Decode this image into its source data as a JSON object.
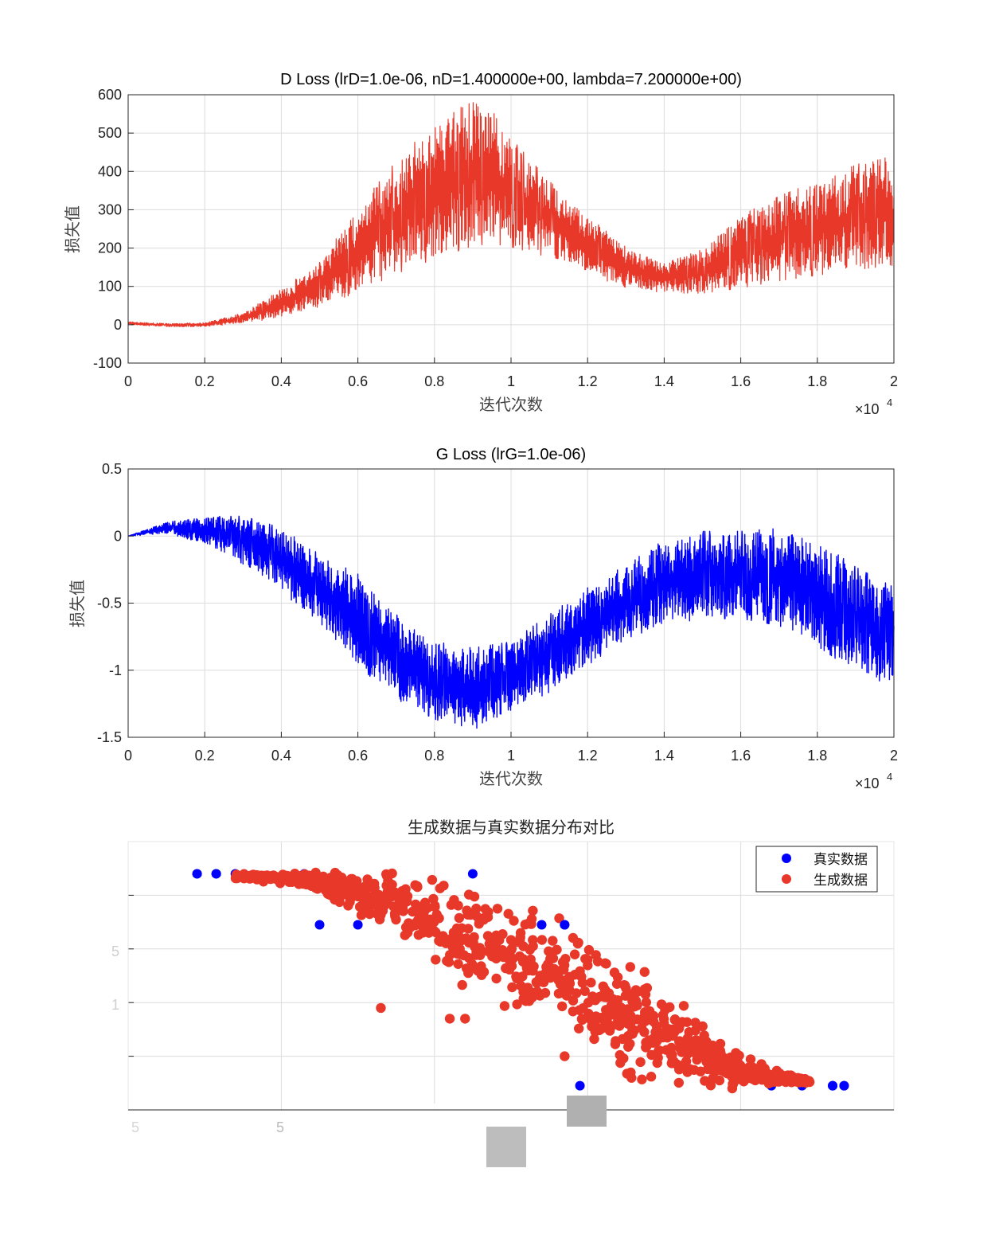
{
  "chart_data": [
    {
      "type": "line",
      "title": "D Loss (lrD=1.0e-06, nD=1.400000e+00, lambda=7.200000e+00)",
      "xlabel": "迭代次数",
      "ylabel": "损失值",
      "xlim": [
        0,
        20000
      ],
      "ylim": [
        -100,
        600
      ],
      "xticks": [
        0,
        0.2,
        0.4,
        0.6,
        0.8,
        1,
        1.2,
        1.4,
        1.6,
        1.8,
        2
      ],
      "xtick_labels": [
        "0",
        "0.2",
        "0.4",
        "0.6",
        "0.8",
        "1",
        "1.2",
        "1.4",
        "1.6",
        "1.8",
        "2"
      ],
      "x_exponent_base": "×10",
      "x_exponent_power": "4",
      "yticks": [
        -100,
        0,
        100,
        200,
        300,
        400,
        500,
        600
      ],
      "ytick_labels": [
        "-100",
        "0",
        "100",
        "200",
        "300",
        "400",
        "500",
        "600"
      ],
      "color": "#e8382a",
      "grid": true,
      "series": [
        {
          "name": "D Loss",
          "envelope_x": [
            0,
            1000,
            2000,
            3000,
            4000,
            5000,
            6000,
            7000,
            8000,
            9000,
            9500,
            10000,
            11000,
            12000,
            13000,
            14000,
            15000,
            16000,
            17000,
            18000,
            19000,
            19800,
            20000
          ],
          "envelope_low": [
            0,
            -5,
            -5,
            5,
            20,
            50,
            90,
            140,
            180,
            215,
            220,
            210,
            180,
            135,
            100,
            85,
            85,
            100,
            120,
            135,
            150,
            160,
            150
          ],
          "envelope_high": [
            8,
            3,
            5,
            30,
            90,
            160,
            300,
            420,
            520,
            590,
            560,
            480,
            370,
            280,
            200,
            160,
            200,
            280,
            330,
            370,
            410,
            440,
            360
          ]
        }
      ]
    },
    {
      "type": "line",
      "title": "G Loss (lrG=1.0e-06)",
      "xlabel": "迭代次数",
      "ylabel": "损失值",
      "xlim": [
        0,
        20000
      ],
      "ylim": [
        -1.5,
        0.5
      ],
      "xticks": [
        0,
        0.2,
        0.4,
        0.6,
        0.8,
        1,
        1.2,
        1.4,
        1.6,
        1.8,
        2
      ],
      "xtick_labels": [
        "0",
        "0.2",
        "0.4",
        "0.6",
        "0.8",
        "1",
        "1.2",
        "1.4",
        "1.6",
        "1.8",
        "2"
      ],
      "x_exponent_base": "×10",
      "x_exponent_power": "4",
      "yticks": [
        -1.5,
        -1,
        -0.5,
        0,
        0.5
      ],
      "ytick_labels": [
        "-1.5",
        "-1",
        "-0.5",
        "0",
        "0.5"
      ],
      "color": "#0000ff",
      "grid": true,
      "series": [
        {
          "name": "G Loss",
          "envelope_x": [
            0,
            1000,
            2000,
            3000,
            4000,
            5000,
            6000,
            7000,
            8000,
            9000,
            10000,
            11000,
            12000,
            13000,
            14000,
            15000,
            16000,
            17000,
            18000,
            19000,
            20000
          ],
          "envelope_low": [
            0,
            0.02,
            -0.05,
            -0.2,
            -0.4,
            -0.65,
            -0.95,
            -1.2,
            -1.35,
            -1.45,
            -1.3,
            -1.15,
            -0.95,
            -0.75,
            -0.65,
            -0.6,
            -0.6,
            -0.65,
            -0.8,
            -1.0,
            -1.1
          ],
          "envelope_high": [
            0,
            0.1,
            0.14,
            0.14,
            0.05,
            -0.15,
            -0.3,
            -0.6,
            -0.8,
            -0.85,
            -0.8,
            -0.6,
            -0.4,
            -0.2,
            -0.05,
            0.02,
            0.02,
            0.04,
            -0.05,
            -0.25,
            -0.4
          ]
        }
      ]
    },
    {
      "type": "scatter",
      "title": "生成数据与真实数据分布对比",
      "grid": true,
      "xlim": [
        0,
        100
      ],
      "ylim": [
        0,
        100
      ],
      "visible_tick_fragments": [
        "5",
        "5",
        "5",
        "1"
      ],
      "legend": {
        "position": "top-right",
        "entries": [
          {
            "label": "真实数据",
            "color": "#0000ff"
          },
          {
            "label": "生成数据",
            "color": "#e8382a"
          }
        ]
      },
      "series": [
        {
          "name": "真实数据",
          "color": "#0000ff",
          "points": [
            [
              9,
              88
            ],
            [
              11.5,
              88
            ],
            [
              14,
              88
            ],
            [
              23,
              88
            ],
            [
              45,
              88
            ],
            [
              25,
              69
            ],
            [
              30,
              69
            ],
            [
              54,
              69
            ],
            [
              57,
              69
            ],
            [
              59,
              9
            ],
            [
              84,
              9
            ],
            [
              88,
              9
            ],
            [
              92,
              9
            ],
            [
              93.5,
              9
            ]
          ]
        },
        {
          "name": "生成数据",
          "color": "#e8382a",
          "description_trend": "dense sigmoid-shaped band falling from upper-left to lower-right",
          "band_x": [
            14,
            20,
            25,
            30,
            35,
            40,
            45,
            50,
            55,
            60,
            65,
            70,
            75,
            80,
            85,
            89
          ],
          "band_low": [
            86,
            85,
            82,
            75,
            68,
            58,
            48,
            40,
            32,
            24,
            18,
            13,
            11,
            10,
            10,
            10
          ],
          "band_high": [
            88,
            88,
            88,
            87,
            86,
            84,
            80,
            74,
            68,
            60,
            52,
            42,
            30,
            20,
            14,
            11
          ],
          "count": 900,
          "outliers": [
            [
              33,
              38
            ],
            [
              42,
              34
            ],
            [
              44,
              34
            ],
            [
              57,
              20
            ],
            [
              60,
              56
            ]
          ]
        }
      ]
    }
  ]
}
